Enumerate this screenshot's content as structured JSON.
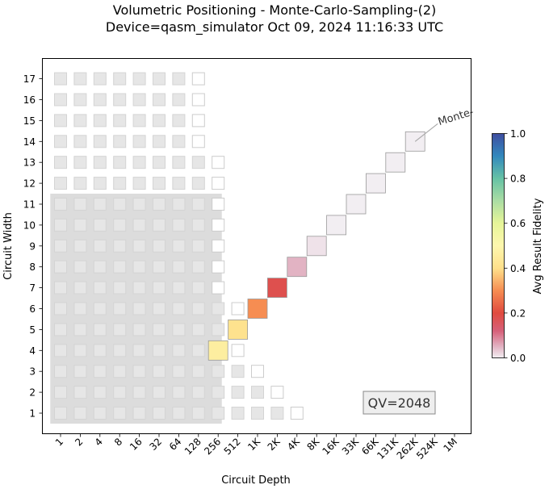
{
  "title_line1": "Volumetric Positioning - Monte-Carlo-Sampling-(2)",
  "title_line2": "Device=qasm_simulator  Oct 09, 2024 11:16:33 UTC",
  "chart_data": {
    "type": "heatmap",
    "xlabel": "Circuit Depth",
    "ylabel": "Circuit Width",
    "x_ticks": [
      "1",
      "2",
      "4",
      "8",
      "16",
      "32",
      "64",
      "128",
      "256",
      "512",
      "1K",
      "2K",
      "4K",
      "8K",
      "16K",
      "33K",
      "66K",
      "131K",
      "262K",
      "524K",
      "1M"
    ],
    "y_ticks": [
      "1",
      "2",
      "3",
      "4",
      "5",
      "6",
      "7",
      "8",
      "9",
      "10",
      "11",
      "12",
      "13",
      "14",
      "15",
      "16",
      "17"
    ],
    "colorbar": {
      "label": "Avg Result Fidelity",
      "min": 0.0,
      "max": 1.0,
      "ticks": [
        "0.0",
        "0.2",
        "0.4",
        "0.6",
        "0.8",
        "1.0"
      ]
    },
    "qv_label": "QV=2048",
    "annotation": "Monte-",
    "qv_region": {
      "depth_max": 256,
      "width_max": 11
    },
    "background_grid": [
      {
        "width": 1,
        "max_depth_index": 12,
        "filled_through": 11
      },
      {
        "width": 2,
        "max_depth_index": 11,
        "filled_through": 10
      },
      {
        "width": 3,
        "max_depth_index": 10,
        "filled_through": 9
      },
      {
        "width": 4,
        "max_depth_index": 9,
        "filled_through": 8
      },
      {
        "width": 5,
        "max_depth_index": 9,
        "filled_through": 8
      },
      {
        "width": 6,
        "max_depth_index": 9,
        "filled_through": 8
      },
      {
        "width": 7,
        "max_depth_index": 8,
        "filled_through": 7
      },
      {
        "width": 8,
        "max_depth_index": 8,
        "filled_through": 7
      },
      {
        "width": 9,
        "max_depth_index": 8,
        "filled_through": 7
      },
      {
        "width": 10,
        "max_depth_index": 8,
        "filled_through": 7
      },
      {
        "width": 11,
        "max_depth_index": 8,
        "filled_through": 7
      },
      {
        "width": 12,
        "max_depth_index": 8,
        "filled_through": 7
      },
      {
        "width": 13,
        "max_depth_index": 8,
        "filled_through": 7
      },
      {
        "width": 14,
        "max_depth_index": 7,
        "filled_through": 6
      },
      {
        "width": 15,
        "max_depth_index": 7,
        "filled_through": 6
      },
      {
        "width": 16,
        "max_depth_index": 7,
        "filled_through": 6
      },
      {
        "width": 17,
        "max_depth_index": 7,
        "filled_through": 6
      }
    ],
    "points": [
      {
        "width": 4,
        "depth": "256",
        "fidelity": 0.46
      },
      {
        "width": 5,
        "depth": "512",
        "fidelity": 0.41
      },
      {
        "width": 6,
        "depth": "1K",
        "fidelity": 0.3
      },
      {
        "width": 7,
        "depth": "2K",
        "fidelity": 0.18
      },
      {
        "width": 8,
        "depth": "4K",
        "fidelity": 0.05
      },
      {
        "width": 9,
        "depth": "8K",
        "fidelity": 0.01
      },
      {
        "width": 10,
        "depth": "16K",
        "fidelity": 0.0
      },
      {
        "width": 11,
        "depth": "33K",
        "fidelity": 0.0
      },
      {
        "width": 12,
        "depth": "66K",
        "fidelity": 0.0
      },
      {
        "width": 13,
        "depth": "131K",
        "fidelity": 0.0
      },
      {
        "width": 14,
        "depth": "262K",
        "fidelity": 0.0
      }
    ]
  }
}
